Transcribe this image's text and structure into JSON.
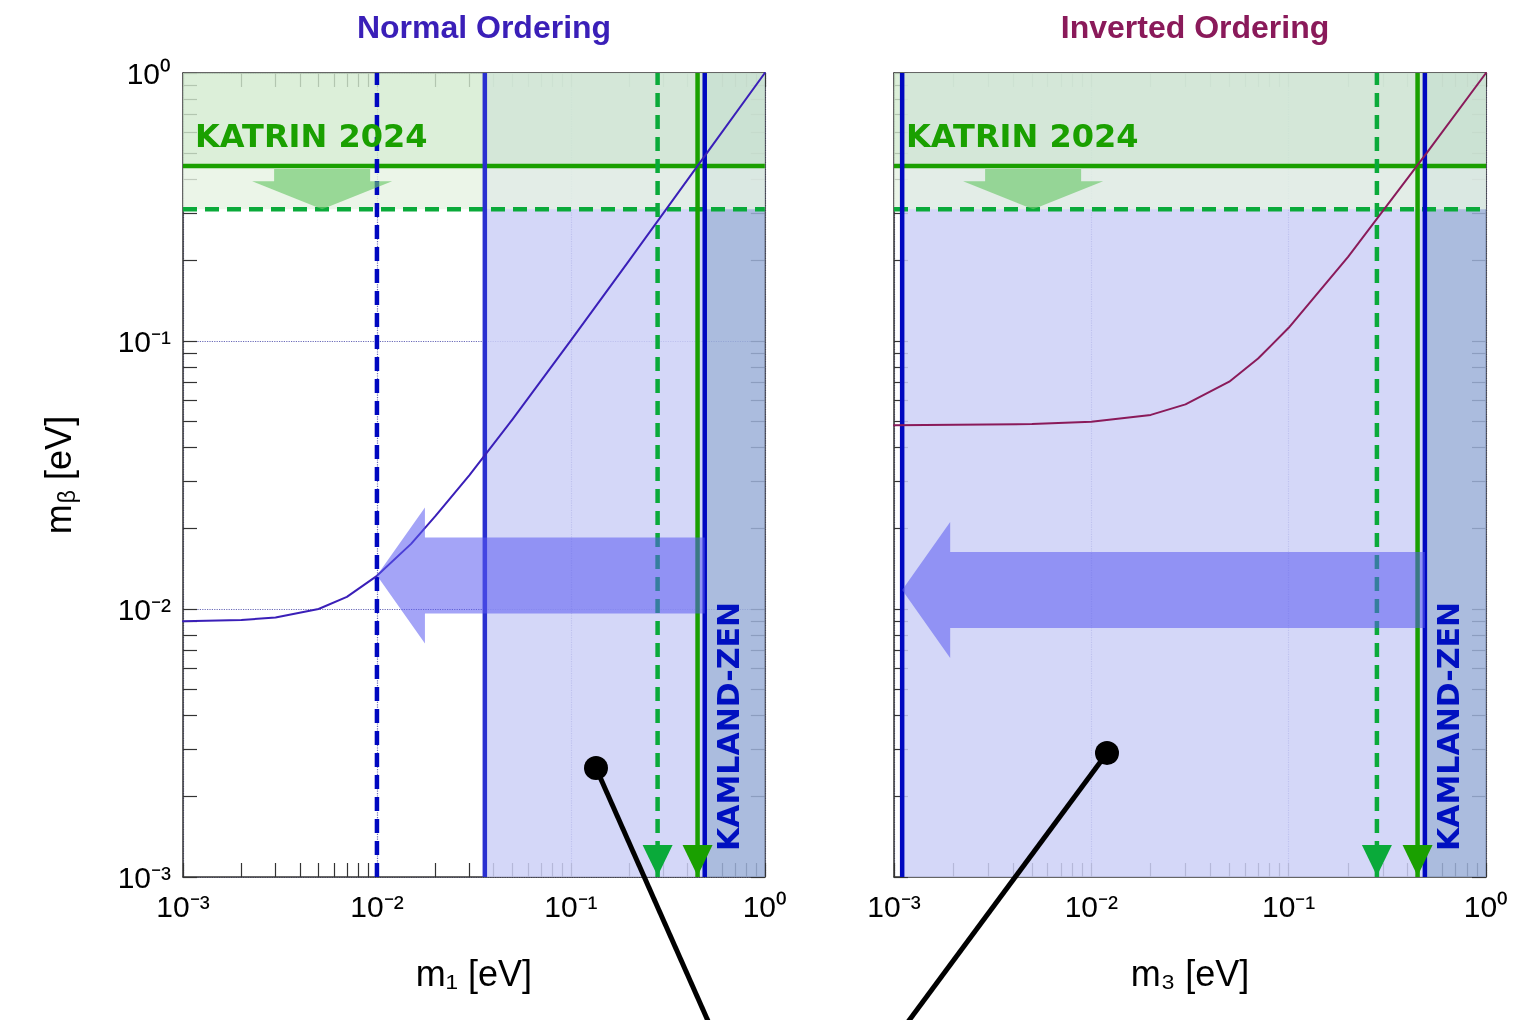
{
  "chart_data": [
    {
      "type": "line",
      "title": "Normal Ordering",
      "xlabel": "m₁ [eV]",
      "ylabel": "m$_{β}$ [eV]",
      "log": "xy",
      "grid": true,
      "marker": "none",
      "line_style": "solid",
      "xlim": [
        0.001,
        1
      ],
      "ylim": [
        0.001,
        1
      ],
      "xticks": [
        {
          "value": 0.001,
          "label": "10⁻³"
        },
        {
          "value": 0.002,
          "label": null
        },
        {
          "value": 0.003,
          "label": null
        },
        {
          "value": 0.004,
          "label": null
        },
        {
          "value": 0.005,
          "label": null
        },
        {
          "value": 0.006,
          "label": null
        },
        {
          "value": 0.007,
          "label": null
        },
        {
          "value": 0.008,
          "label": null
        },
        {
          "value": 0.009,
          "label": null
        },
        {
          "value": 0.01,
          "label": "10⁻²"
        },
        {
          "value": 0.02,
          "label": null
        },
        {
          "value": 0.03,
          "label": null
        },
        {
          "value": 0.04,
          "label": null
        },
        {
          "value": 0.05,
          "label": null
        },
        {
          "value": 0.06,
          "label": null
        },
        {
          "value": 0.07,
          "label": null
        },
        {
          "value": 0.08,
          "label": null
        },
        {
          "value": 0.09,
          "label": null
        },
        {
          "value": 0.1,
          "label": "10⁻¹"
        },
        {
          "value": 0.2,
          "label": null
        },
        {
          "value": 0.3,
          "label": null
        },
        {
          "value": 0.4,
          "label": null
        },
        {
          "value": 0.5,
          "label": null
        },
        {
          "value": 0.6,
          "label": null
        },
        {
          "value": 0.7,
          "label": null
        },
        {
          "value": 0.8,
          "label": null
        },
        {
          "value": 0.9,
          "label": null
        },
        {
          "value": 1,
          "label": "10⁰"
        }
      ],
      "yticks": [
        {
          "value": 0.001,
          "label": "10⁻³"
        },
        {
          "value": 0.002,
          "label": null
        },
        {
          "value": 0.003,
          "label": null
        },
        {
          "value": 0.004,
          "label": null
        },
        {
          "value": 0.005,
          "label": null
        },
        {
          "value": 0.006,
          "label": null
        },
        {
          "value": 0.007,
          "label": null
        },
        {
          "value": 0.008,
          "label": null
        },
        {
          "value": 0.009,
          "label": null
        },
        {
          "value": 0.01,
          "label": "10⁻²"
        },
        {
          "value": 0.02,
          "label": null
        },
        {
          "value": 0.03,
          "label": null
        },
        {
          "value": 0.04,
          "label": null
        },
        {
          "value": 0.05,
          "label": null
        },
        {
          "value": 0.06,
          "label": null
        },
        {
          "value": 0.07,
          "label": null
        },
        {
          "value": 0.08,
          "label": null
        },
        {
          "value": 0.09,
          "label": null
        },
        {
          "value": 0.1,
          "label": "10⁻¹"
        },
        {
          "value": 0.2,
          "label": null
        },
        {
          "value": 0.3,
          "label": null
        },
        {
          "value": 0.4,
          "label": null
        },
        {
          "value": 0.5,
          "label": null
        },
        {
          "value": 0.6,
          "label": null
        },
        {
          "value": 0.7,
          "label": null
        },
        {
          "value": 0.8,
          "label": null
        },
        {
          "value": 0.9,
          "label": null
        },
        {
          "value": 1,
          "label": "10⁰"
        }
      ],
      "series": [
        {
          "color": "#3a1fb8",
          "x": [
            0.001,
            0.002,
            0.003,
            0.005,
            0.007,
            0.01,
            0.015,
            0.02,
            0.03,
            0.05,
            0.1,
            0.2,
            0.5,
            1
          ],
          "values": [
            0.009,
            0.0091,
            0.0093,
            0.01,
            0.0111,
            0.0133,
            0.0175,
            0.0222,
            0.0316,
            0.051,
            0.1005,
            0.2,
            0.5,
            1
          ]
        }
      ],
      "bands": [
        {
          "axis": "x",
          "from": 0.036,
          "to": 0.49,
          "label": null,
          "color": "#cdd0f7"
        },
        {
          "axis": "x",
          "from": 0.49,
          "to": 1,
          "label": "KAMLAND-ZEN",
          "color": "#9cb0d8"
        },
        {
          "axis": "y",
          "from": 0.31,
          "to": 0.45,
          "label": null,
          "color": "#e6f2e2"
        },
        {
          "axis": "y",
          "from": 0.45,
          "to": 1,
          "label": null,
          "color": "#d3ebd0"
        }
      ],
      "ref_lines": [
        {
          "axis": "y",
          "value": 0.45,
          "label": "KATRIN 2024",
          "color": "#1aa000",
          "line_style": "solid"
        },
        {
          "axis": "y",
          "value": 0.31,
          "label": null,
          "color": "#0aaa3a",
          "line_style": "dashed"
        },
        {
          "axis": "x",
          "value": 0.01,
          "label": null,
          "color": "#0008c0",
          "line_style": "dashed"
        },
        {
          "axis": "x",
          "value": 0.036,
          "label": null,
          "color": "#2a30d0",
          "line_style": "solid"
        },
        {
          "axis": "x",
          "value": 0.49,
          "label": null,
          "color": "#0008c0",
          "line_style": "solid"
        },
        {
          "axis": "x",
          "value": 0.28,
          "label": null,
          "color": "#0aaa3a",
          "line_style": "dashed"
        },
        {
          "axis": "x",
          "value": 0.45,
          "label": null,
          "color": "#1aa000",
          "line_style": "solid"
        }
      ]
    },
    {
      "type": "line",
      "title": "Inverted Ordering",
      "xlabel": "m₃ [eV]",
      "log": "xy",
      "grid": true,
      "marker": "none",
      "line_style": "solid",
      "tick_labels": "x",
      "xlim": [
        0.001,
        1
      ],
      "ylim": [
        0.001,
        1
      ],
      "xticks": [
        {
          "value": 0.001,
          "label": "10⁻³"
        },
        {
          "value": 0.002,
          "label": null
        },
        {
          "value": 0.003,
          "label": null
        },
        {
          "value": 0.004,
          "label": null
        },
        {
          "value": 0.005,
          "label": null
        },
        {
          "value": 0.006,
          "label": null
        },
        {
          "value": 0.007,
          "label": null
        },
        {
          "value": 0.008,
          "label": null
        },
        {
          "value": 0.009,
          "label": null
        },
        {
          "value": 0.01,
          "label": "10⁻²"
        },
        {
          "value": 0.02,
          "label": null
        },
        {
          "value": 0.03,
          "label": null
        },
        {
          "value": 0.04,
          "label": null
        },
        {
          "value": 0.05,
          "label": null
        },
        {
          "value": 0.06,
          "label": null
        },
        {
          "value": 0.07,
          "label": null
        },
        {
          "value": 0.08,
          "label": null
        },
        {
          "value": 0.09,
          "label": null
        },
        {
          "value": 0.1,
          "label": "10⁻¹"
        },
        {
          "value": 0.2,
          "label": null
        },
        {
          "value": 0.3,
          "label": null
        },
        {
          "value": 0.4,
          "label": null
        },
        {
          "value": 0.5,
          "label": null
        },
        {
          "value": 0.6,
          "label": null
        },
        {
          "value": 0.7,
          "label": null
        },
        {
          "value": 0.8,
          "label": null
        },
        {
          "value": 0.9,
          "label": null
        },
        {
          "value": 1,
          "label": "10⁰"
        }
      ],
      "yticks": [
        {
          "value": 0.001,
          "label": null
        },
        {
          "value": 0.002,
          "label": null
        },
        {
          "value": 0.003,
          "label": null
        },
        {
          "value": 0.004,
          "label": null
        },
        {
          "value": 0.005,
          "label": null
        },
        {
          "value": 0.006,
          "label": null
        },
        {
          "value": 0.007,
          "label": null
        },
        {
          "value": 0.008,
          "label": null
        },
        {
          "value": 0.009,
          "label": null
        },
        {
          "value": 0.01,
          "label": null
        },
        {
          "value": 0.02,
          "label": null
        },
        {
          "value": 0.03,
          "label": null
        },
        {
          "value": 0.04,
          "label": null
        },
        {
          "value": 0.05,
          "label": null
        },
        {
          "value": 0.06,
          "label": null
        },
        {
          "value": 0.07,
          "label": null
        },
        {
          "value": 0.08,
          "label": null
        },
        {
          "value": 0.09,
          "label": null
        },
        {
          "value": 0.1,
          "label": null
        },
        {
          "value": 0.2,
          "label": null
        },
        {
          "value": 0.3,
          "label": null
        },
        {
          "value": 0.4,
          "label": null
        },
        {
          "value": 0.5,
          "label": null
        },
        {
          "value": 0.6,
          "label": null
        },
        {
          "value": 0.7,
          "label": null
        },
        {
          "value": 0.8,
          "label": null
        },
        {
          "value": 0.9,
          "label": null
        },
        {
          "value": 1,
          "label": null
        }
      ],
      "series": [
        {
          "color": "#8a1a5a",
          "x": [
            0.001,
            0.005,
            0.01,
            0.02,
            0.03,
            0.05,
            0.07,
            0.1,
            0.2,
            0.5,
            1
          ],
          "values": [
            0.0485,
            0.049,
            0.05,
            0.053,
            0.058,
            0.0705,
            0.086,
            0.112,
            0.206,
            0.502,
            1
          ]
        }
      ],
      "bands": [
        {
          "axis": "x",
          "from": 0.0011,
          "to": 0.49,
          "label": null,
          "color": "#cdd0f7"
        },
        {
          "axis": "x",
          "from": 0.49,
          "to": 1,
          "label": "KAMLAND-ZEN",
          "color": "#9cb0d8"
        },
        {
          "axis": "y",
          "from": 0.31,
          "to": 0.45,
          "label": null,
          "color": "#e6f2e2"
        },
        {
          "axis": "y",
          "from": 0.45,
          "to": 1,
          "label": null,
          "color": "#d3ebd0"
        }
      ],
      "ref_lines": [
        {
          "axis": "y",
          "value": 0.45,
          "label": "KATRIN 2024",
          "color": "#1aa000",
          "line_style": "solid"
        },
        {
          "axis": "y",
          "value": 0.31,
          "label": null,
          "color": "#0aaa3a",
          "line_style": "dashed"
        },
        {
          "axis": "x",
          "value": 0.0011,
          "label": null,
          "color": "#0008c0",
          "line_style": "solid"
        },
        {
          "axis": "x",
          "value": 0.49,
          "label": null,
          "color": "#0008c0",
          "line_style": "solid"
        },
        {
          "axis": "x",
          "value": 0.28,
          "label": null,
          "color": "#0aaa3a",
          "line_style": "dashed"
        },
        {
          "axis": "x",
          "value": 0.45,
          "label": null,
          "color": "#1aa000",
          "line_style": "solid"
        }
      ]
    }
  ]
}
